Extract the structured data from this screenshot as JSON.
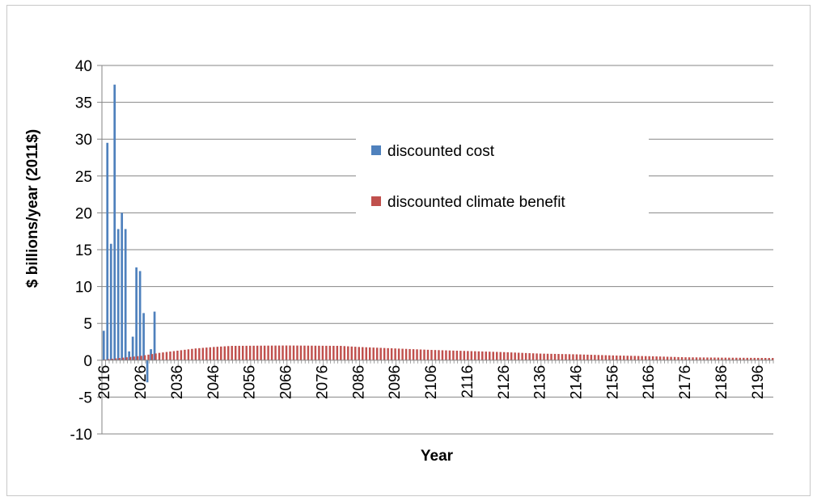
{
  "chart_data": {
    "type": "bar",
    "xlabel": "Year",
    "ylabel": "$ billions/year  (2011$)",
    "ylim": [
      -10,
      40
    ],
    "yticks": [
      -10,
      -5,
      0,
      5,
      10,
      15,
      20,
      25,
      30,
      35,
      40
    ],
    "xlim": [
      2015.5,
      2200.5
    ],
    "xticks": [
      2016,
      2026,
      2036,
      2046,
      2056,
      2066,
      2076,
      2086,
      2096,
      2106,
      2116,
      2126,
      2136,
      2146,
      2156,
      2166,
      2176,
      2186,
      2196
    ],
    "grid": "horizontal",
    "legend_position": "upper-middle",
    "series": [
      {
        "name": "discounted cost",
        "color": "#4f81bd",
        "points": [
          [
            2016,
            4.0
          ],
          [
            2017,
            29.5
          ],
          [
            2018,
            15.8
          ],
          [
            2019,
            37.4
          ],
          [
            2020,
            17.8
          ],
          [
            2021,
            20.0
          ],
          [
            2022,
            17.8
          ],
          [
            2023,
            1.2
          ],
          [
            2024,
            3.2
          ],
          [
            2025,
            12.6
          ],
          [
            2026,
            12.1
          ],
          [
            2027,
            6.4
          ],
          [
            2028,
            -3.0
          ],
          [
            2029,
            1.5
          ],
          [
            2030,
            6.6
          ]
        ]
      },
      {
        "name": "discounted climate benefit",
        "color": "#c0504d",
        "years": [
          2016,
          2200
        ],
        "profile": [
          [
            2016,
            0.1
          ],
          [
            2026,
            0.6
          ],
          [
            2031,
            1.0
          ],
          [
            2036,
            1.3
          ],
          [
            2041,
            1.6
          ],
          [
            2046,
            1.8
          ],
          [
            2051,
            1.95
          ],
          [
            2066,
            2.0
          ],
          [
            2081,
            1.95
          ],
          [
            2086,
            1.8
          ],
          [
            2096,
            1.6
          ],
          [
            2106,
            1.4
          ],
          [
            2116,
            1.25
          ],
          [
            2126,
            1.1
          ],
          [
            2136,
            0.9
          ],
          [
            2146,
            0.8
          ],
          [
            2156,
            0.65
          ],
          [
            2166,
            0.55
          ],
          [
            2176,
            0.4
          ],
          [
            2186,
            0.35
          ],
          [
            2200,
            0.3
          ]
        ]
      }
    ]
  }
}
